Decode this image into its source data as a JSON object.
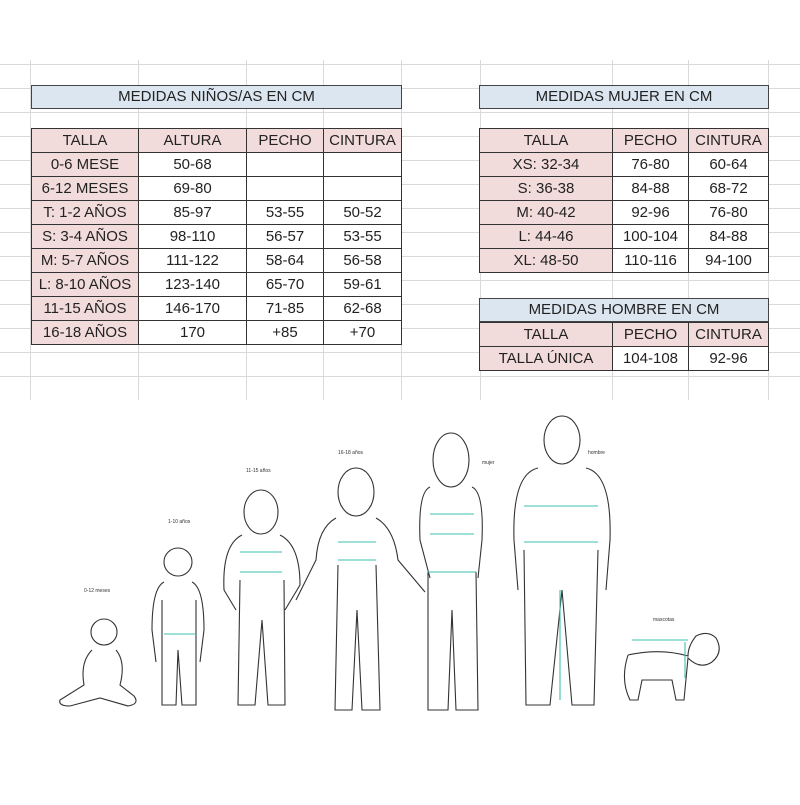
{
  "kids": {
    "title": "MEDIDAS NIÑOS/AS EN CM",
    "headers": [
      "TALLA",
      "ALTURA",
      "PECHO",
      "CINTURA"
    ],
    "rows": [
      [
        "0-6 MESE",
        "50-68",
        "",
        ""
      ],
      [
        "6-12 MESES",
        "69-80",
        "",
        ""
      ],
      [
        "T: 1-2 AÑOS",
        "85-97",
        "53-55",
        "50-52"
      ],
      [
        "S: 3-4 AÑOS",
        "98-110",
        "56-57",
        "53-55"
      ],
      [
        "M: 5-7 AÑOS",
        "111-122",
        "58-64",
        "56-58"
      ],
      [
        "L: 8-10 AÑOS",
        "123-140",
        "65-70",
        "59-61"
      ],
      [
        "11-15 AÑOS",
        "146-170",
        "71-85",
        "62-68"
      ],
      [
        "16-18 AÑOS",
        "170",
        "+85",
        "+70"
      ]
    ]
  },
  "women": {
    "title": "MEDIDAS MUJER EN CM",
    "headers": [
      "TALLA",
      "PECHO",
      "CINTURA"
    ],
    "rows": [
      [
        "XS: 32-34",
        "76-80",
        "60-64"
      ],
      [
        "S: 36-38",
        "84-88",
        "68-72"
      ],
      [
        "M: 40-42",
        "92-96",
        "76-80"
      ],
      [
        "L: 44-46",
        "100-104",
        "84-88"
      ],
      [
        "XL: 48-50",
        "110-116",
        "94-100"
      ]
    ]
  },
  "men": {
    "title": "MEDIDAS HOMBRE EN CM",
    "headers": [
      "TALLA",
      "PECHO",
      "CINTURA"
    ],
    "rows": [
      [
        "TALLA ÚNICA",
        "104-108",
        "92-96"
      ]
    ]
  },
  "illustration": {
    "labels": [
      "0-12 meses",
      "1-10 años",
      "11-15 años",
      "16-18 años",
      "mujer",
      "hombre",
      "mascotas"
    ],
    "measure_color": "#3cbfb0"
  }
}
